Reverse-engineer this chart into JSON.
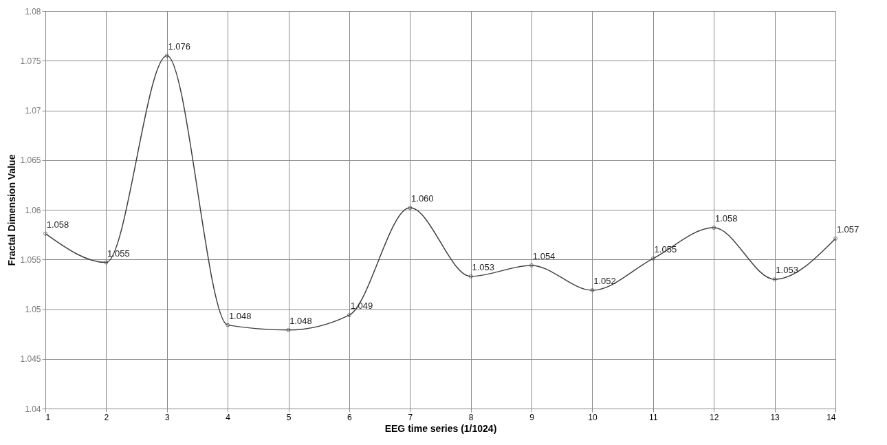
{
  "chart_data": {
    "type": "line",
    "xlabel": "EEG time series (1/1024)",
    "ylabel": "Fractal Dimension Value",
    "x": [
      1,
      2,
      3,
      4,
      5,
      6,
      7,
      8,
      9,
      10,
      11,
      12,
      13,
      14
    ],
    "series": [
      {
        "color": "#404040",
        "values": [
          1.0576,
          1.0547,
          1.0755,
          1.0484,
          1.0479,
          1.0494,
          1.0602,
          1.0533,
          1.0544,
          1.0519,
          1.0551,
          1.0582,
          1.053,
          1.0571
        ],
        "value_labels": [
          "1.058",
          "1.055",
          "1.076",
          "1.048",
          "1.048",
          "1.049",
          "1.060",
          "1.053",
          "1.054",
          "1.052",
          "1.055",
          "1.058",
          "1.053",
          "1.057"
        ]
      }
    ],
    "xlim": [
      1,
      14
    ],
    "xticks": [
      1,
      2,
      3,
      4,
      5,
      6,
      7,
      8,
      9,
      10,
      11,
      12,
      13,
      14
    ],
    "ylim": [
      1.04,
      1.08
    ],
    "yticks": [
      1.04,
      1.045,
      1.05,
      1.055,
      1.06,
      1.065,
      1.07,
      1.075,
      1.08
    ],
    "grid": true,
    "marker": "circle",
    "line_style": "solid"
  }
}
